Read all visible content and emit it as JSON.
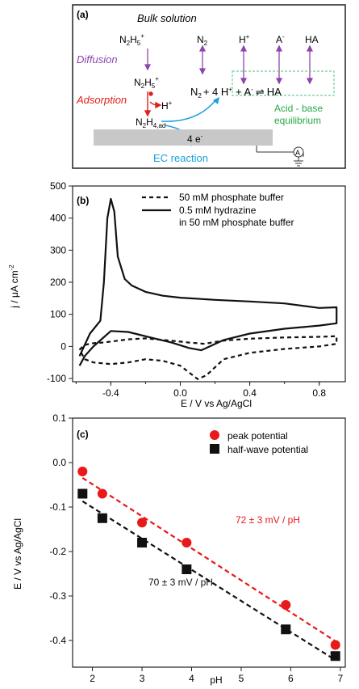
{
  "panel_a": {
    "label": "(a)",
    "title": "Bulk solution",
    "diffusion": "Diffusion",
    "adsorption": "Adsorption",
    "species": {
      "n2h5_top_main": "N",
      "n2h5_top_sub1": "2",
      "n2h5_top_h": "H",
      "n2h5_top_sub2": "5",
      "n2h5_top_sup": "+",
      "n2_top_main": "N",
      "n2_top_sub": "2",
      "hplus_top": "H",
      "hplus_top_sup": "+",
      "aminus_top": "A",
      "aminus_top_sup": "-",
      "ha_top": "HA",
      "n2h5_mid_main": "N",
      "n2h5_mid_sub1": "2",
      "n2h5_mid_h": "H",
      "n2h5_mid_sub2": "5",
      "n2h5_mid_sup": "+",
      "hplus_ads": "H",
      "hplus_ads_sup": "+",
      "n2h4_main": "N",
      "n2h4_sub1": "2",
      "n2h4_h": "H",
      "n2h4_sub2": "4,ad",
      "product_n2": "N",
      "product_n2_sub": "2",
      "product_plus4": "+ 4 H",
      "product_plus4_sup": "+",
      "equil_plus": "+ A",
      "equil_plus_sup": "-",
      "equil_arrow": "⇌",
      "equil_ha": "HA",
      "electrons": "4 e",
      "electrons_sup": "-",
      "acid_base_1": "Acid - base",
      "acid_base_2": "equilibrium",
      "ec_reaction": "EC reaction",
      "electrode_symbol": "A"
    },
    "colors": {
      "diffusion": "#8e44ad",
      "adsorption": "#e0201b",
      "acid_base": "#27a845",
      "ec": "#1aa0e0",
      "electrode": "#c8c8c8",
      "equil_box": "#6fcf97"
    }
  },
  "panel_b": {
    "label": "(b)",
    "xlabel": "E / V vs Ag/AgCl",
    "ylabel": "j / μA cm",
    "ylabel_sup": "-2",
    "legend": [
      "50 mM phosphate buffer",
      "0.5 mM hydrazine",
      "in 50 mM phosphate buffer"
    ],
    "xticks": [
      "-0.4",
      "0.0",
      "0.4",
      "0.8"
    ],
    "yticks": [
      "500",
      "400",
      "300",
      "200",
      "100",
      "0",
      "-100"
    ]
  },
  "panel_c": {
    "label": "(c)",
    "xlabel": "pH",
    "ylabel": "E / V vs Ag/AgCl",
    "legend": [
      "peak potential",
      "half-wave potential"
    ],
    "annotation_red": "72 ± 3 mV / pH",
    "annotation_black": "70 ± 3 mV / pH",
    "xticks": [
      "2",
      "3",
      "4",
      "5",
      "6",
      "7"
    ],
    "yticks": [
      "0.1",
      "0.0",
      "-0.1",
      "-0.2",
      "-0.3",
      "-0.4"
    ],
    "colors": {
      "peak": "#e8181b",
      "halfwave": "#111111"
    }
  },
  "chart_data": [
    {
      "type": "line",
      "xlabel": "E / V vs Ag/AgCl",
      "ylabel": "j / μA cm-2",
      "xlim": [
        -0.62,
        0.95
      ],
      "ylim": [
        -110,
        500
      ],
      "series": [
        {
          "name": "50 mM phosphate buffer",
          "style": "dashed",
          "x": [
            -0.58,
            -0.55,
            -0.5,
            -0.45,
            -0.4,
            -0.3,
            -0.2,
            -0.1,
            0.0,
            0.05,
            0.1,
            0.14,
            0.18,
            0.25,
            0.4,
            0.6,
            0.8,
            0.9,
            0.9,
            0.8,
            0.6,
            0.4,
            0.25,
            0.15,
            0.1,
            0.0,
            -0.1,
            -0.2,
            -0.3,
            -0.4,
            -0.5,
            -0.55,
            -0.58
          ],
          "y": [
            -10,
            5,
            10,
            12,
            15,
            22,
            25,
            20,
            15,
            12,
            10,
            8,
            12,
            18,
            24,
            28,
            30,
            32,
            8,
            0,
            -8,
            -20,
            -40,
            -90,
            -102,
            -60,
            -45,
            -40,
            -50,
            -55,
            -50,
            -40,
            -10
          ]
        },
        {
          "name": "0.5 mM hydrazine in 50 mM phosphate buffer",
          "style": "solid",
          "x": [
            -0.58,
            -0.52,
            -0.46,
            -0.44,
            -0.42,
            -0.4,
            -0.38,
            -0.36,
            -0.32,
            -0.28,
            -0.2,
            -0.1,
            0.0,
            0.2,
            0.4,
            0.6,
            0.8,
            0.9,
            0.9,
            0.8,
            0.6,
            0.4,
            0.25,
            0.15,
            0.12,
            0.05,
            -0.05,
            -0.15,
            -0.3,
            -0.4,
            -0.5,
            -0.55,
            -0.58
          ],
          "y": [
            -30,
            40,
            80,
            200,
            400,
            460,
            420,
            280,
            210,
            190,
            170,
            158,
            152,
            145,
            140,
            134,
            120,
            122,
            72,
            65,
            55,
            40,
            20,
            -5,
            -12,
            -5,
            12,
            25,
            45,
            48,
            0,
            -30,
            -60
          ]
        }
      ]
    },
    {
      "type": "scatter",
      "xlabel": "pH",
      "ylabel": "E / V vs Ag/AgCl",
      "xlim": [
        1.6,
        7.1
      ],
      "ylim": [
        -0.46,
        0.1
      ],
      "series": [
        {
          "name": "peak potential",
          "x": [
            1.8,
            2.2,
            3.0,
            3.9,
            5.9,
            6.9
          ],
          "y": [
            -0.02,
            -0.07,
            -0.135,
            -0.18,
            -0.32,
            -0.41
          ]
        },
        {
          "name": "half-wave potential",
          "x": [
            1.8,
            2.2,
            3.0,
            3.9,
            5.9,
            6.9
          ],
          "y": [
            -0.07,
            -0.125,
            -0.18,
            -0.24,
            -0.375,
            -0.435
          ]
        }
      ],
      "fits": [
        {
          "series": "peak potential",
          "label": "72 ± 3 mV / pH",
          "slope": -0.072,
          "intercept": 0.1,
          "x_range": [
            1.8,
            6.9
          ]
        },
        {
          "series": "half-wave potential",
          "label": "70 ± 3 mV / pH",
          "slope": -0.07,
          "intercept": 0.05,
          "x_range": [
            1.8,
            6.9
          ]
        }
      ]
    }
  ]
}
